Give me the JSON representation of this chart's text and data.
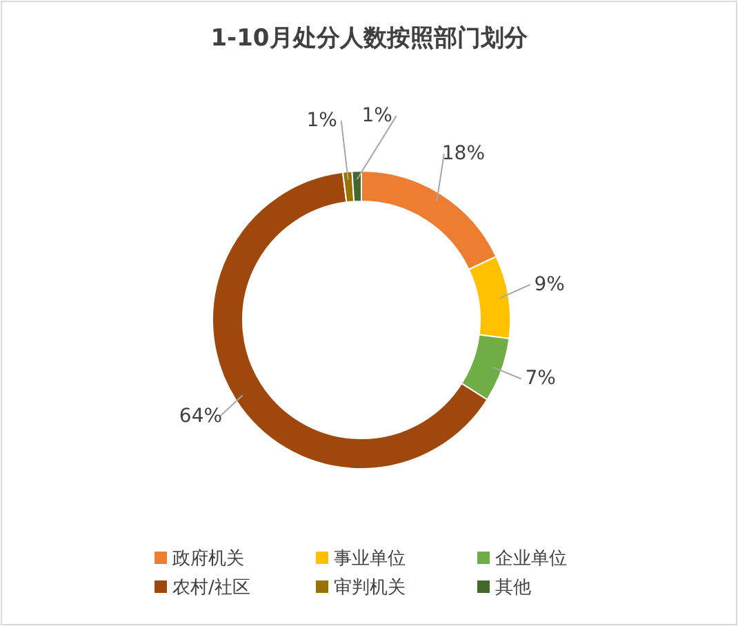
{
  "chart_data": {
    "type": "donut",
    "title": "1-10月处分人数按照部门划分",
    "categories": [
      "政府机关",
      "事业单位",
      "企业单位",
      "农村/社区",
      "审判机关",
      "其他"
    ],
    "values": [
      18,
      9,
      7,
      64,
      1,
      1
    ],
    "value_labels": [
      "18%",
      "9%",
      "7%",
      "64%",
      "1%",
      "1%"
    ],
    "colors": [
      "#ed7d31",
      "#ffc000",
      "#70ad47",
      "#9e480e",
      "#997300",
      "#43682b"
    ],
    "legend": "bottom"
  }
}
